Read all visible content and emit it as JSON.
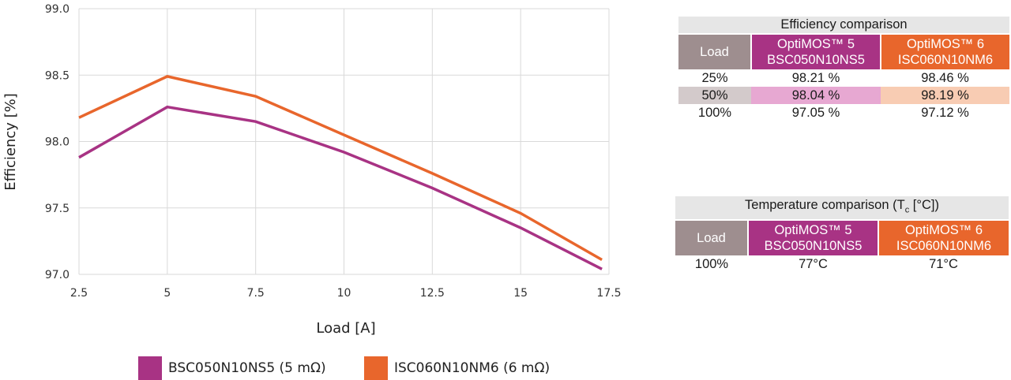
{
  "chart_data": {
    "type": "line",
    "xlabel": "Load [A]",
    "ylabel": "Efficiency [%]",
    "xlim": [
      2.5,
      17.5
    ],
    "ylim": [
      97.0,
      99.0
    ],
    "x_ticks": [
      "2.5",
      "5",
      "7.5",
      "10",
      "12.5",
      "15",
      "17.5"
    ],
    "y_ticks": [
      "97.0",
      "97.5",
      "98.0",
      "98.5",
      "99.0"
    ],
    "grid": true,
    "legend_position": "bottom",
    "series": [
      {
        "name": "BSC050N10NS5 (5 mΩ)",
        "color": "#a83384",
        "x": [
          2.5,
          5,
          7.5,
          10,
          12.5,
          15,
          17.3
        ],
        "y": [
          97.88,
          98.26,
          98.15,
          97.92,
          97.65,
          97.35,
          97.04
        ]
      },
      {
        "name": "ISC060N10NM6 (6 mΩ)",
        "color": "#e8662c",
        "x": [
          2.5,
          5,
          7.5,
          10,
          12.5,
          15,
          17.3
        ],
        "y": [
          98.18,
          98.49,
          98.34,
          98.05,
          97.76,
          97.46,
          97.11
        ]
      }
    ]
  },
  "tables": {
    "efficiency": {
      "title": "Efficiency comparison",
      "headers": {
        "load": "Load",
        "a_line1": "OptiMOS™ 5",
        "a_line2": "BSC050N10NS5",
        "b_line1": "OptiMOS™ 6",
        "b_line2": "ISC060N10NM6"
      },
      "rows": [
        {
          "load": "25%",
          "a": "98.21 %",
          "b": "98.46 %"
        },
        {
          "load": "50%",
          "a": "98.04 %",
          "b": "98.19 %"
        },
        {
          "load": "100%",
          "a": "97.05 %",
          "b": "97.12 %"
        }
      ]
    },
    "temperature": {
      "title_main": "Temperature comparison (T",
      "title_sub": "c",
      "title_end": " [°C])",
      "headers": {
        "load": "Load",
        "a_line1": "OptiMOS™ 5",
        "a_line2": "BSC050N10NS5",
        "b_line1": "OptiMOS™ 6",
        "b_line2": "ISC060N10NM6"
      },
      "rows": [
        {
          "load": "100%",
          "a": "77°C",
          "b": "71°C"
        }
      ]
    }
  },
  "colors": {
    "series_a": "#a83384",
    "series_b": "#e8662c",
    "load_header": "#9e8e8f",
    "grid": "#d9d9d9"
  }
}
